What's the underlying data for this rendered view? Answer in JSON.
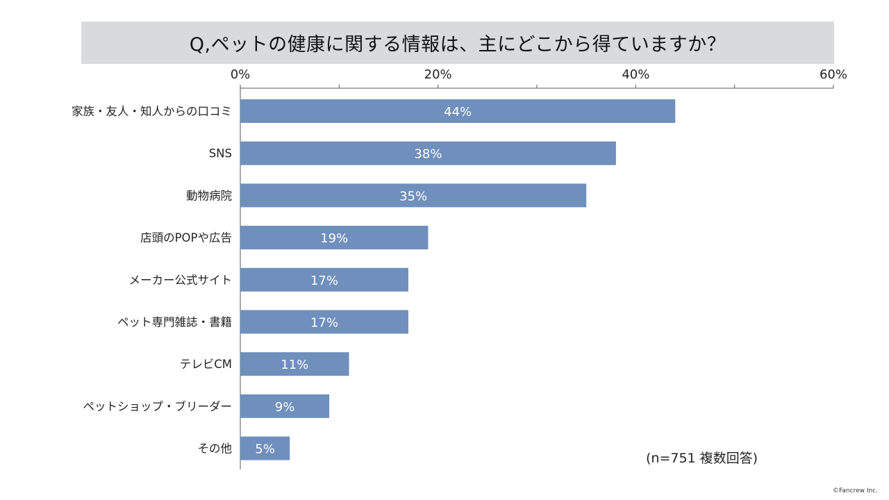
{
  "title": "Q,ペットの健康に関する情報は、主にどこから得ていますか？",
  "note": "(n=751 複数回答)",
  "copyright": "©Fancrew Inc.",
  "colors": {
    "bar": "#6f8fbc",
    "title_background": "#d9dadc",
    "axis": "#555555",
    "bar_label": "#ffffff"
  },
  "chart_data": {
    "type": "bar",
    "orientation": "horizontal",
    "title": "Q,ペットの健康に関する情報は、主にどこから得ていますか？",
    "categories": [
      "家族・友人・知人からの口コミ",
      "SNS",
      "動物病院",
      "店頭のPOPや広告",
      "メーカー公式サイト",
      "ペット専門雑誌・書籍",
      "テレビCM",
      "ペットショップ・ブリーダー",
      "その他"
    ],
    "values": [
      44,
      38,
      35,
      19,
      17,
      17,
      11,
      9,
      5
    ],
    "data_labels": [
      "44%",
      "38%",
      "35%",
      "19%",
      "17%",
      "17%",
      "11%",
      "9%",
      "5%"
    ],
    "xlim": [
      0,
      60
    ],
    "ticks": [
      0,
      20,
      40,
      60
    ],
    "tick_labels": [
      "0%",
      "20%",
      "40%",
      "60%"
    ],
    "minor_ticks": [
      10,
      30,
      50
    ],
    "axis_position": "top",
    "grid": false,
    "legend": "none"
  }
}
